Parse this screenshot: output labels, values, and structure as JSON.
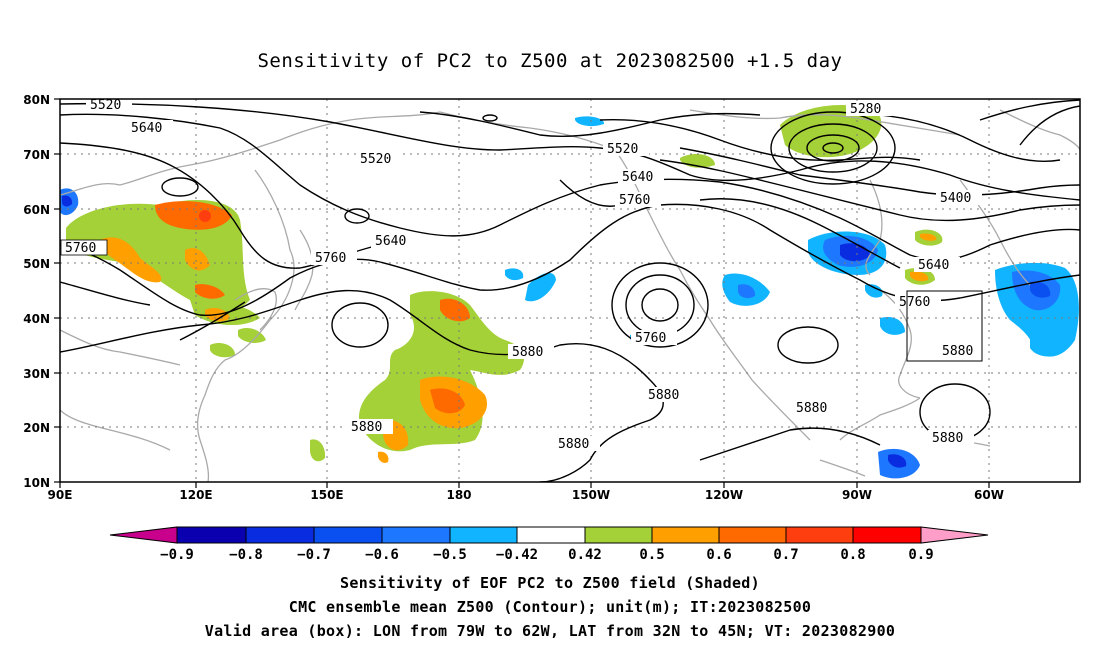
{
  "title": "Sensitivity of PC2 to Z500 at 2023082500 +1.5 day",
  "lat_labels": [
    "80N",
    "70N",
    "60N",
    "50N",
    "40N",
    "30N",
    "20N",
    "10N"
  ],
  "lon_labels": [
    "90E",
    "120E",
    "150E",
    "180",
    "150W",
    "120W",
    "90W",
    "60W"
  ],
  "contour_labels": [
    "5520",
    "5640",
    "5520",
    "5280",
    "5520",
    "5640",
    "5400",
    "5760",
    "5640",
    "5760",
    "5640",
    "5760",
    "5760",
    "5760",
    "5880",
    "5880",
    "5880",
    "5880",
    "5880",
    "5880",
    "5880"
  ],
  "colorbar": {
    "labels": [
      "−0.9",
      "−0.8",
      "−0.7",
      "−0.6",
      "−0.5",
      "−0.42",
      "0.42",
      "0.5",
      "0.6",
      "0.7",
      "0.8",
      "0.9"
    ],
    "colors": [
      "#0a00b0",
      "#0a2ce0",
      "#0a50f0",
      "#1e78ff",
      "#10b4ff",
      "#ffffff",
      "#a4d038",
      "#ffa000",
      "#ff6a00",
      "#ff3e10",
      "#ff0000"
    ],
    "end_low_color": "#c8008c",
    "end_high_color": "#ff9ec8"
  },
  "caption": {
    "line1": "Sensitivity of EOF PC2 to Z500 field (Shaded)",
    "line2": "CMC ensemble mean Z500 (Contour); unit(m); IT:2023082500",
    "line3": "Valid area (box): LON from 79W to 62W, LAT from 32N to 45N; VT: 2023082900"
  }
}
